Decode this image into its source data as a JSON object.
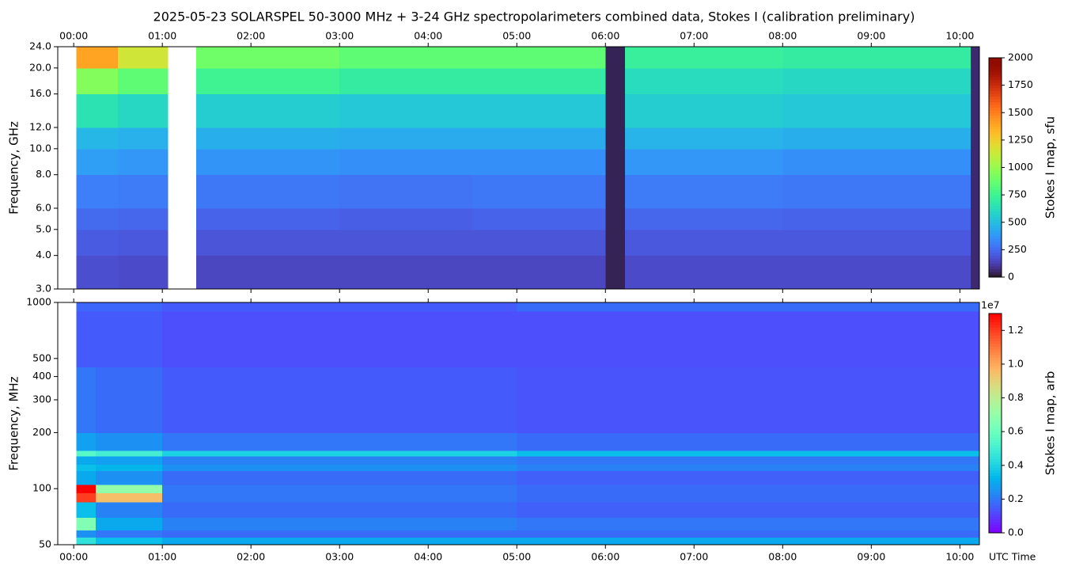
{
  "chart_data": [
    {
      "type": "heatmap",
      "title": "2025-05-23  SOLARSPEL  50-3000 MHz  +  3-24 GHz  spectropolarimeters combined data,  Stokes I  (calibration preliminary)",
      "ylabel": "Frequency, GHz",
      "yscale": "log",
      "xtick_side": "top",
      "xlim": [
        -0.18,
        10.22
      ],
      "xticks": [
        {
          "value": 0,
          "label": "00:00"
        },
        {
          "value": 1,
          "label": "01:00"
        },
        {
          "value": 2,
          "label": "02:00"
        },
        {
          "value": 3,
          "label": "03:00"
        },
        {
          "value": 4,
          "label": "04:00"
        },
        {
          "value": 5,
          "label": "05:00"
        },
        {
          "value": 6,
          "label": "06:00"
        },
        {
          "value": 7,
          "label": "07:00"
        },
        {
          "value": 8,
          "label": "08:00"
        },
        {
          "value": 9,
          "label": "09:00"
        },
        {
          "value": 10,
          "label": "10:00"
        }
      ],
      "ylim": [
        3,
        24
      ],
      "yticks": [
        {
          "value": 3,
          "label": "3.0"
        },
        {
          "value": 4,
          "label": "4.0"
        },
        {
          "value": 5,
          "label": "5.0"
        },
        {
          "value": 6,
          "label": "6.0"
        },
        {
          "value": 8,
          "label": "8.0"
        },
        {
          "value": 10,
          "label": "10.0"
        },
        {
          "value": 12,
          "label": "12.0"
        },
        {
          "value": 16,
          "label": "16.0"
        },
        {
          "value": 20,
          "label": "20.0"
        },
        {
          "value": 24,
          "label": "24.0"
        }
      ],
      "x_edges": [
        0.03,
        0.5,
        1.06,
        1.38,
        3,
        4.5,
        6.0,
        6.22,
        8,
        10.12,
        10.22
      ],
      "y_edges": [
        3,
        4,
        5,
        6,
        8,
        10,
        12,
        16,
        20,
        24
      ],
      "z": [
        [
          170,
          160,
          null,
          150,
          150,
          150,
          40,
          160,
          160,
          60
        ],
        [
          210,
          200,
          null,
          190,
          190,
          190,
          40,
          200,
          200,
          60
        ],
        [
          250,
          240,
          null,
          230,
          220,
          230,
          40,
          240,
          230,
          60
        ],
        [
          310,
          300,
          null,
          290,
          280,
          290,
          40,
          300,
          290,
          60
        ],
        [
          400,
          380,
          null,
          370,
          360,
          360,
          40,
          380,
          360,
          60
        ],
        [
          480,
          460,
          null,
          450,
          440,
          440,
          40,
          470,
          450,
          60
        ],
        [
          650,
          600,
          null,
          560,
          540,
          540,
          40,
          560,
          540,
          60
        ],
        [
          950,
          850,
          null,
          750,
          700,
          700,
          40,
          620,
          600,
          60
        ],
        [
          1400,
          1150,
          null,
          900,
          850,
          850,
          40,
          720,
          700,
          60
        ]
      ],
      "colormap": "turbo",
      "clim": [
        0,
        2000
      ],
      "cticks": [
        0,
        250,
        500,
        750,
        1000,
        1250,
        1500,
        1750,
        2000
      ],
      "colorbar_label": "Stokes I map, sfu"
    },
    {
      "type": "heatmap",
      "xlabel": "UTC Time",
      "ylabel": "Frequency, MHz",
      "yscale": "log",
      "xtick_side": "bottom",
      "xlim": [
        -0.18,
        10.22
      ],
      "xticks": [
        {
          "value": 0,
          "label": "00:00"
        },
        {
          "value": 1,
          "label": "01:00"
        },
        {
          "value": 2,
          "label": "02:00"
        },
        {
          "value": 3,
          "label": "03:00"
        },
        {
          "value": 4,
          "label": "04:00"
        },
        {
          "value": 5,
          "label": "05:00"
        },
        {
          "value": 6,
          "label": "06:00"
        },
        {
          "value": 7,
          "label": "07:00"
        },
        {
          "value": 8,
          "label": "08:00"
        },
        {
          "value": 9,
          "label": "09:00"
        },
        {
          "value": 10,
          "label": "10:00"
        }
      ],
      "ylim": [
        50,
        1000
      ],
      "yticks": [
        50,
        100,
        200,
        300,
        400,
        500,
        1000
      ],
      "x_edges": [
        0.03,
        0.25,
        1.0,
        5,
        10.22
      ],
      "y_edges": [
        50,
        55,
        60,
        70,
        85,
        95,
        105,
        125,
        135,
        150,
        160,
        200,
        450,
        900,
        1000
      ],
      "z": [
        [
          0.45,
          0.35,
          0.3,
          0.3
        ],
        [
          0.25,
          0.2,
          0.18,
          0.18
        ],
        [
          0.65,
          0.3,
          0.22,
          0.2
        ],
        [
          0.35,
          0.22,
          0.18,
          0.16
        ],
        [
          1.2,
          0.95,
          0.2,
          0.18
        ],
        [
          1.3,
          0.7,
          0.2,
          0.18
        ],
        [
          0.3,
          0.25,
          0.18,
          0.16
        ],
        [
          0.35,
          0.33,
          0.25,
          0.22
        ],
        [
          0.3,
          0.28,
          0.22,
          0.2
        ],
        [
          0.55,
          0.5,
          0.4,
          0.35
        ],
        [
          0.28,
          0.25,
          0.2,
          0.18
        ],
        [
          0.2,
          0.18,
          0.15,
          0.14
        ],
        [
          0.15,
          0.15,
          0.13,
          0.13
        ],
        [
          0.17,
          0.17,
          0.15,
          0.18
        ]
      ],
      "colormap": "rainbow",
      "clim": [
        0,
        1.3
      ],
      "colorbar_offset": "1e7",
      "cticks": [
        {
          "value": 0,
          "label": "0.0"
        },
        {
          "value": 0.2,
          "label": "0.2"
        },
        {
          "value": 0.4,
          "label": "0.4"
        },
        {
          "value": 0.6,
          "label": "0.6"
        },
        {
          "value": 0.8,
          "label": "0.8"
        },
        {
          "value": 1,
          "label": "1.0"
        },
        {
          "value": 1.2,
          "label": "1.2"
        }
      ],
      "colorbar_label": "Stokes I map, arb"
    }
  ]
}
